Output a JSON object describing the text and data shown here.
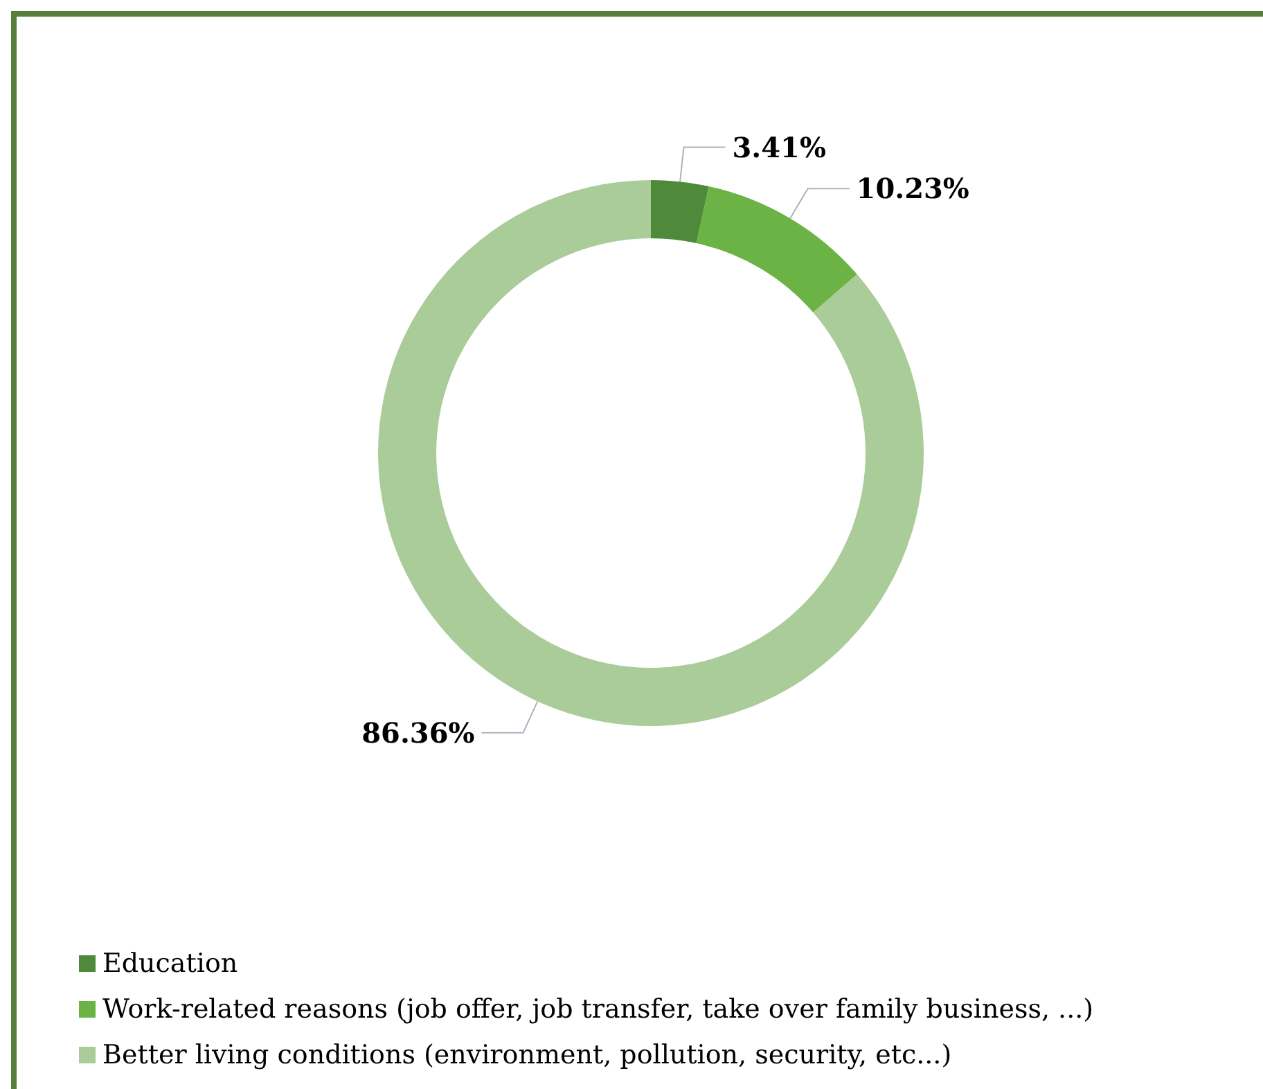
{
  "chart_data": {
    "type": "donut",
    "categories": [
      "Education",
      "Work-related reasons (job offer, job transfer, take over family business, ...)",
      "Better living conditions (environment, pollution, security, etc...)"
    ],
    "values": [
      3.41,
      10.23,
      86.36
    ],
    "colors": [
      "#4e8a3a",
      "#6ab344",
      "#a9cc98"
    ],
    "value_labels": [
      "3.41%",
      "10.23%",
      "86.36%"
    ],
    "legend": "bottom left"
  }
}
